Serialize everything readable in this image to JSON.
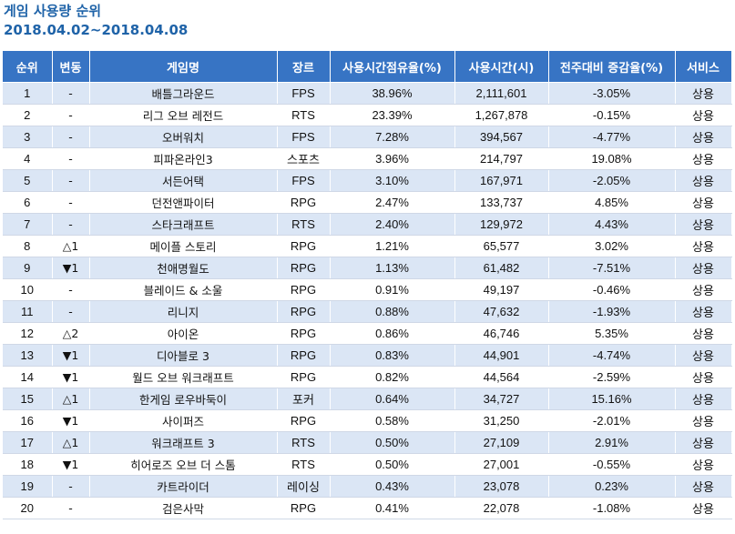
{
  "page": {
    "title": "게임 사용량 순위",
    "period": "2018.04.02~2018.04.08"
  },
  "table": {
    "headers": [
      "순위",
      "변동",
      "게임명",
      "장르",
      "사용시간점유율(%)",
      "사용시간(시)",
      "전주대비 증감율(%)",
      "서비스"
    ],
    "rows": [
      {
        "rank": "1",
        "change": "-",
        "name": "배틀그라운드",
        "genre": "FPS",
        "share": "38.96%",
        "hours": "2,111,601",
        "wow": "-3.05%",
        "service": "상용"
      },
      {
        "rank": "2",
        "change": "-",
        "name": "리그 오브 레전드",
        "genre": "RTS",
        "share": "23.39%",
        "hours": "1,267,878",
        "wow": "-0.15%",
        "service": "상용"
      },
      {
        "rank": "3",
        "change": "-",
        "name": "오버워치",
        "genre": "FPS",
        "share": "7.28%",
        "hours": "394,567",
        "wow": "-4.77%",
        "service": "상용"
      },
      {
        "rank": "4",
        "change": "-",
        "name": "피파온라인3",
        "genre": "스포츠",
        "share": "3.96%",
        "hours": "214,797",
        "wow": "19.08%",
        "service": "상용"
      },
      {
        "rank": "5",
        "change": "-",
        "name": "서든어택",
        "genre": "FPS",
        "share": "3.10%",
        "hours": "167,971",
        "wow": "-2.05%",
        "service": "상용"
      },
      {
        "rank": "6",
        "change": "-",
        "name": "던전앤파이터",
        "genre": "RPG",
        "share": "2.47%",
        "hours": "133,737",
        "wow": "4.85%",
        "service": "상용"
      },
      {
        "rank": "7",
        "change": "-",
        "name": "스타크래프트",
        "genre": "RTS",
        "share": "2.40%",
        "hours": "129,972",
        "wow": "4.43%",
        "service": "상용"
      },
      {
        "rank": "8",
        "change": "△1",
        "name": "메이플 스토리",
        "genre": "RPG",
        "share": "1.21%",
        "hours": "65,577",
        "wow": "3.02%",
        "service": "상용"
      },
      {
        "rank": "9",
        "change": "▼1",
        "name": "천애명월도",
        "genre": "RPG",
        "share": "1.13%",
        "hours": "61,482",
        "wow": "-7.51%",
        "service": "상용"
      },
      {
        "rank": "10",
        "change": "-",
        "name": "블레이드 & 소울",
        "genre": "RPG",
        "share": "0.91%",
        "hours": "49,197",
        "wow": "-0.46%",
        "service": "상용"
      },
      {
        "rank": "11",
        "change": "-",
        "name": "리니지",
        "genre": "RPG",
        "share": "0.88%",
        "hours": "47,632",
        "wow": "-1.93%",
        "service": "상용"
      },
      {
        "rank": "12",
        "change": "△2",
        "name": "아이온",
        "genre": "RPG",
        "share": "0.86%",
        "hours": "46,746",
        "wow": "5.35%",
        "service": "상용"
      },
      {
        "rank": "13",
        "change": "▼1",
        "name": "디아블로 3",
        "genre": "RPG",
        "share": "0.83%",
        "hours": "44,901",
        "wow": "-4.74%",
        "service": "상용"
      },
      {
        "rank": "14",
        "change": "▼1",
        "name": "월드 오브 워크래프트",
        "genre": "RPG",
        "share": "0.82%",
        "hours": "44,564",
        "wow": "-2.59%",
        "service": "상용"
      },
      {
        "rank": "15",
        "change": "△1",
        "name": "한게임 로우바둑이",
        "genre": "포커",
        "share": "0.64%",
        "hours": "34,727",
        "wow": "15.16%",
        "service": "상용"
      },
      {
        "rank": "16",
        "change": "▼1",
        "name": "사이퍼즈",
        "genre": "RPG",
        "share": "0.58%",
        "hours": "31,250",
        "wow": "-2.01%",
        "service": "상용"
      },
      {
        "rank": "17",
        "change": "△1",
        "name": "워크래프트 3",
        "genre": "RTS",
        "share": "0.50%",
        "hours": "27,109",
        "wow": "2.91%",
        "service": "상용"
      },
      {
        "rank": "18",
        "change": "▼1",
        "name": "히어로즈 오브 더 스톰",
        "genre": "RTS",
        "share": "0.50%",
        "hours": "27,001",
        "wow": "-0.55%",
        "service": "상용"
      },
      {
        "rank": "19",
        "change": "-",
        "name": "카트라이더",
        "genre": "레이싱",
        "share": "0.43%",
        "hours": "23,078",
        "wow": "0.23%",
        "service": "상용"
      },
      {
        "rank": "20",
        "change": "-",
        "name": "검은사막",
        "genre": "RPG",
        "share": "0.41%",
        "hours": "22,078",
        "wow": "-1.08%",
        "service": "상용"
      }
    ]
  },
  "colors": {
    "title": "#1f63a8",
    "header_bg": "#3774c4",
    "stripe": "#dbe6f5"
  }
}
